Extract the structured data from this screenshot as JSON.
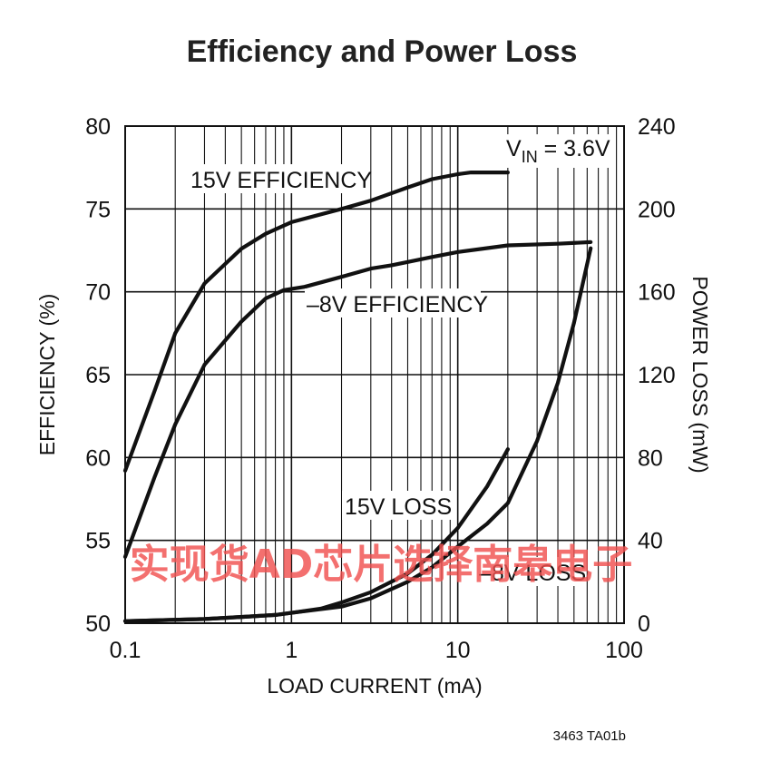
{
  "chart_data": {
    "type": "line",
    "title": "Efficiency and Power Loss",
    "xlabel": "LOAD CURRENT (mA)",
    "ylabel_left": "EFFICIENCY (%)",
    "ylabel_right": "POWER LOSS (mW)",
    "x_scale": "log",
    "xlim": [
      0.1,
      100
    ],
    "ylim_left": [
      50,
      80
    ],
    "ylim_right": [
      0,
      240
    ],
    "x_ticks": [
      "0.1",
      "1",
      "10",
      "100"
    ],
    "y_ticks_left": [
      "50",
      "55",
      "60",
      "65",
      "70",
      "75",
      "80"
    ],
    "y_ticks_right": [
      "0",
      "40",
      "80",
      "120",
      "160",
      "200",
      "240"
    ],
    "grid": true,
    "condition": {
      "prefix": "V",
      "subscript": "IN",
      "suffix": " = 3.6V"
    },
    "series": [
      {
        "name": "15V EFFICIENCY",
        "axis": "left",
        "x": [
          0.1,
          0.15,
          0.2,
          0.3,
          0.5,
          0.7,
          1,
          2,
          3,
          5,
          7,
          10,
          12,
          15,
          20
        ],
        "y": [
          59.2,
          64.0,
          67.5,
          70.5,
          72.6,
          73.5,
          74.2,
          75.0,
          75.5,
          76.3,
          76.8,
          77.1,
          77.2,
          77.2,
          77.2
        ]
      },
      {
        "name": "-8V EFFICIENCY",
        "axis": "left",
        "x": [
          0.1,
          0.15,
          0.2,
          0.3,
          0.5,
          0.7,
          0.9,
          1.2,
          2,
          3,
          4,
          5,
          7,
          10,
          20,
          40,
          63
        ],
        "y": [
          54.0,
          58.8,
          62.0,
          65.6,
          68.2,
          69.6,
          70.1,
          70.3,
          70.9,
          71.4,
          71.6,
          71.8,
          72.1,
          72.4,
          72.8,
          72.9,
          73.0
        ]
      },
      {
        "name": "15V LOSS",
        "axis": "right",
        "x": [
          0.1,
          0.3,
          0.5,
          0.8,
          1,
          1.5,
          2,
          3,
          5,
          7,
          10,
          15,
          20
        ],
        "y": [
          1,
          2,
          3,
          4,
          5,
          7,
          10,
          15,
          24,
          33,
          46,
          66,
          84
        ]
      },
      {
        "name": "-8V LOSS",
        "axis": "right",
        "x": [
          0.1,
          0.3,
          0.5,
          0.8,
          1,
          2,
          3,
          5,
          7,
          10,
          15,
          20,
          30,
          40,
          50,
          63
        ],
        "y": [
          1,
          2,
          3,
          4,
          5,
          8,
          12,
          20,
          27,
          37,
          48,
          58,
          88,
          116,
          145,
          181
        ]
      }
    ],
    "annotations": [
      {
        "text": "15V EFFICIENCY"
      },
      {
        "text": "–8V EFFICIENCY"
      },
      {
        "text": "15V LOSS"
      },
      {
        "text": "–8V LOSS"
      }
    ],
    "figure_code": "3463 TA01b",
    "watermark": "实现货AD芯片选择南皋电子",
    "colors": {
      "line": "#111111",
      "grid": "#111111",
      "watermark": "#f0504f"
    }
  }
}
